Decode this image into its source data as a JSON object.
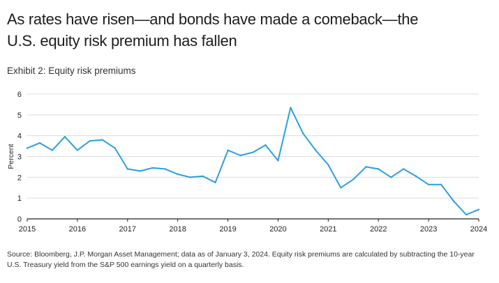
{
  "title_lines": [
    "As rates have risen—and bonds have made a comeback—the",
    "U.S. equity risk premium has fallen"
  ],
  "subtitle": "Exhibit 2: Equity risk premiums",
  "source_note": "Source: Bloomberg, J.P. Morgan Asset Management; data as of January 3, 2024. Equity risk premiums are calculated by subtracting the 10-year U.S. Treasury yield from the S&P 500 earnings yield on a quarterly basis.",
  "colors": {
    "line": "#2b9fe0",
    "grid": "#dcdcdc",
    "axis": "#222222"
  },
  "chart_data": {
    "type": "line",
    "title": "Exhibit 2: Equity risk premiums",
    "xlabel": "",
    "ylabel": "Percent",
    "xlim": [
      2015,
      2024
    ],
    "ylim": [
      0,
      6
    ],
    "grid": "horizontal",
    "x_tick_labels": [
      "2015",
      "2016",
      "2017",
      "2018",
      "2019",
      "2020",
      "2021",
      "2022",
      "2023",
      "2024"
    ],
    "y_tick_labels": [
      "0",
      "1",
      "2",
      "3",
      "4",
      "5",
      "6"
    ],
    "series": [
      {
        "x": [
          2015.0,
          2015.25,
          2015.5,
          2015.75,
          2016.0,
          2016.25,
          2016.5,
          2016.75,
          2017.0,
          2017.25,
          2017.5,
          2017.75,
          2018.0,
          2018.25,
          2018.5,
          2018.75,
          2019.0,
          2019.25,
          2019.5,
          2019.75,
          2020.0,
          2020.25,
          2020.5,
          2020.75,
          2021.0,
          2021.25,
          2021.5,
          2021.75,
          2022.0,
          2022.25,
          2022.5,
          2022.75,
          2023.0,
          2023.25,
          2023.5,
          2023.75,
          2024.0
        ],
        "values": [
          3.4,
          3.65,
          3.3,
          3.95,
          3.3,
          3.75,
          3.8,
          3.4,
          2.4,
          2.3,
          2.45,
          2.4,
          2.15,
          2.0,
          2.05,
          1.75,
          3.3,
          3.05,
          3.2,
          3.55,
          2.8,
          5.35,
          4.1,
          3.3,
          2.6,
          1.5,
          1.9,
          2.5,
          2.4,
          2.0,
          2.4,
          2.05,
          1.65,
          1.65,
          0.85,
          0.2,
          0.45
        ]
      }
    ]
  }
}
